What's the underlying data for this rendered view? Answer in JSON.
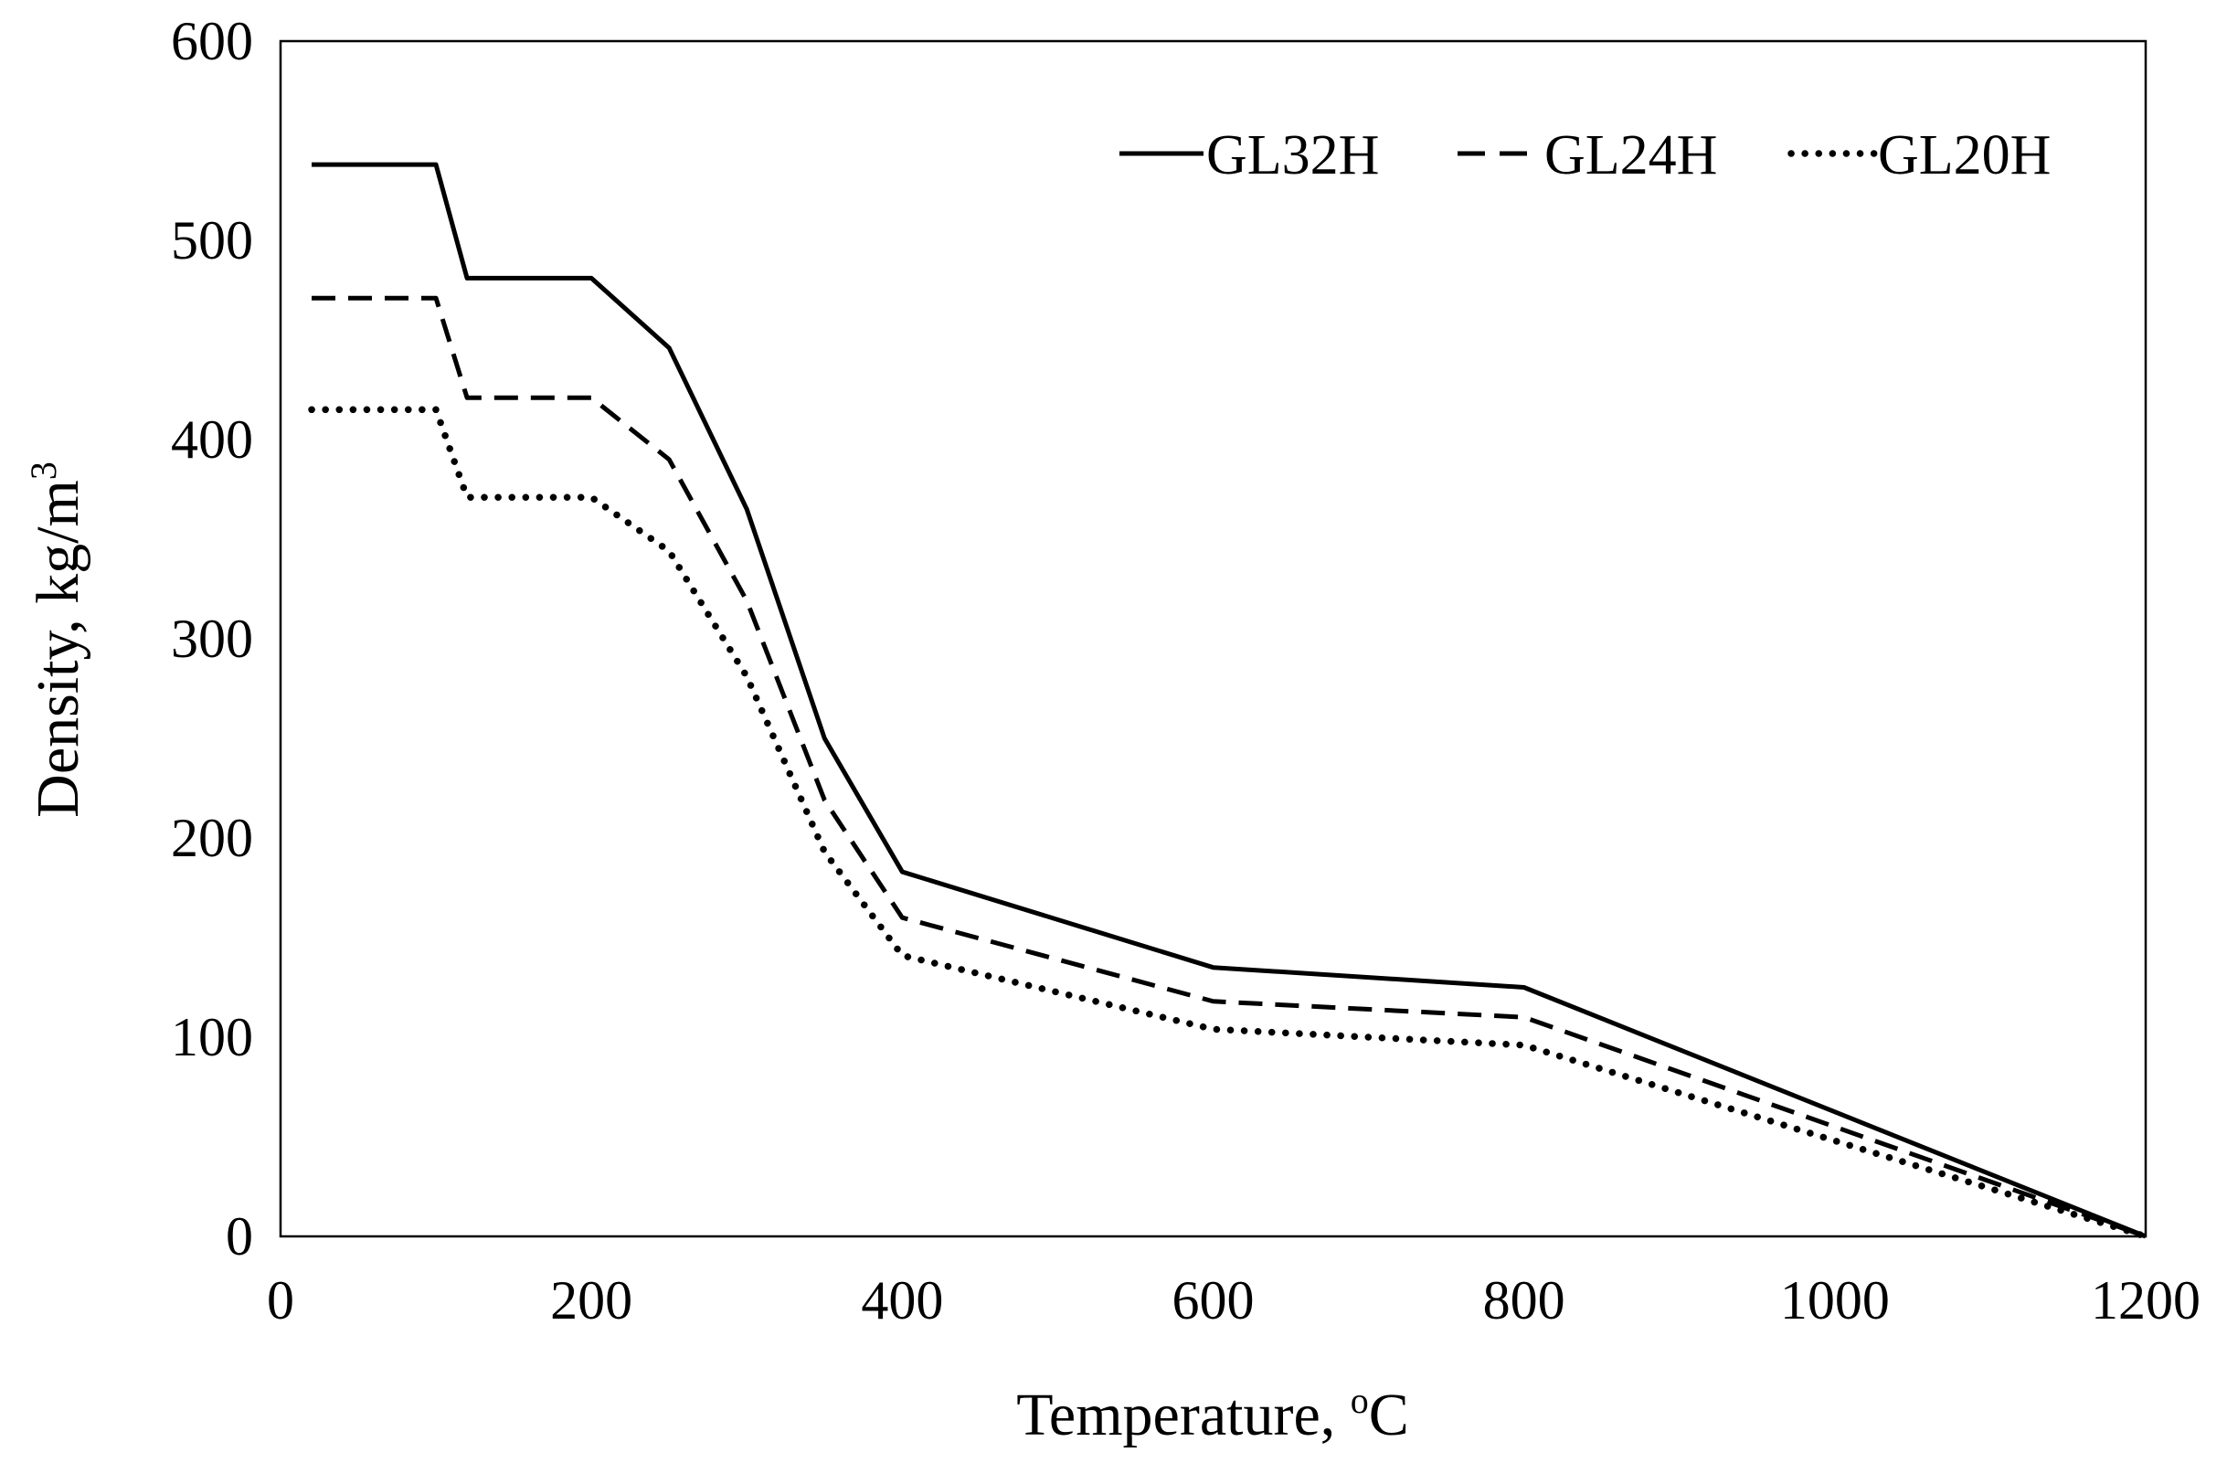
{
  "chart_data": {
    "type": "line",
    "title": "",
    "xlabel": "Temperature, ",
    "xlabel_sup": "o",
    "xlabel_unit": "C",
    "ylabel": "Density,  kg/m",
    "ylabel_sup": "3",
    "xlim": [
      0,
      1200
    ],
    "ylim": [
      0,
      600
    ],
    "xticks": [
      0,
      200,
      400,
      600,
      800,
      1000,
      1200
    ],
    "yticks": [
      0,
      100,
      200,
      300,
      400,
      500,
      600
    ],
    "grid": false,
    "legend_position": "top-right",
    "series": [
      {
        "name": "GL32H",
        "style": "solid",
        "color": "#000000",
        "x": [
          20,
          100,
          120,
          200,
          250,
          300,
          350,
          400,
          600,
          800,
          1200
        ],
        "y": [
          538,
          538,
          481,
          481,
          446,
          365,
          250,
          183,
          135,
          125,
          0
        ]
      },
      {
        "name": "GL24H",
        "style": "dashed",
        "color": "#000000",
        "x": [
          20,
          100,
          120,
          200,
          250,
          300,
          350,
          400,
          600,
          800,
          1200
        ],
        "y": [
          471,
          471,
          421,
          421,
          390,
          319,
          219,
          160,
          118,
          110,
          0
        ]
      },
      {
        "name": "GL20H",
        "style": "dotted",
        "color": "#000000",
        "x": [
          20,
          100,
          120,
          200,
          250,
          300,
          350,
          400,
          600,
          800,
          1200
        ],
        "y": [
          415,
          415,
          371,
          371,
          344,
          281,
          193,
          141,
          104,
          96,
          0
        ]
      }
    ]
  }
}
